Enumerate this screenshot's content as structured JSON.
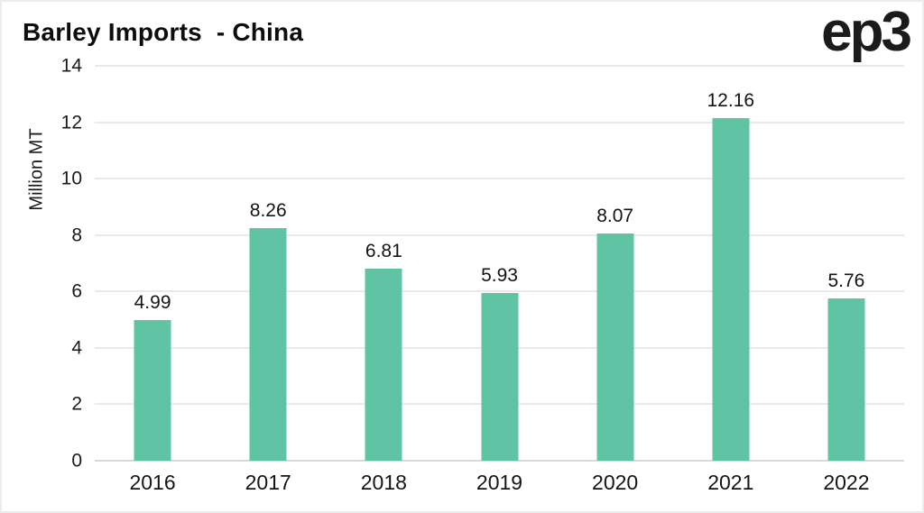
{
  "title": "Barley Imports  - China",
  "logo": "ep3",
  "chart_data": {
    "type": "bar",
    "title": "Barley Imports - China",
    "categories": [
      "2016",
      "2017",
      "2018",
      "2019",
      "2020",
      "2021",
      "2022"
    ],
    "values": [
      4.99,
      8.26,
      6.81,
      5.93,
      8.07,
      12.16,
      5.76
    ],
    "data_labels": [
      "4.99",
      "8.26",
      "6.81",
      "5.93",
      "8.07",
      "12.16",
      "5.76"
    ],
    "xlabel": "",
    "ylabel": "Million MT",
    "ylim": [
      0,
      14
    ],
    "yticks": [
      0,
      2,
      4,
      6,
      8,
      10,
      12,
      14
    ],
    "grid": true,
    "legend_position": "none",
    "bar_color": "#5fc3a4",
    "gridline_color": "#e9e9e9",
    "baseline_color": "#d9d9d9",
    "text_color": "#141414"
  }
}
